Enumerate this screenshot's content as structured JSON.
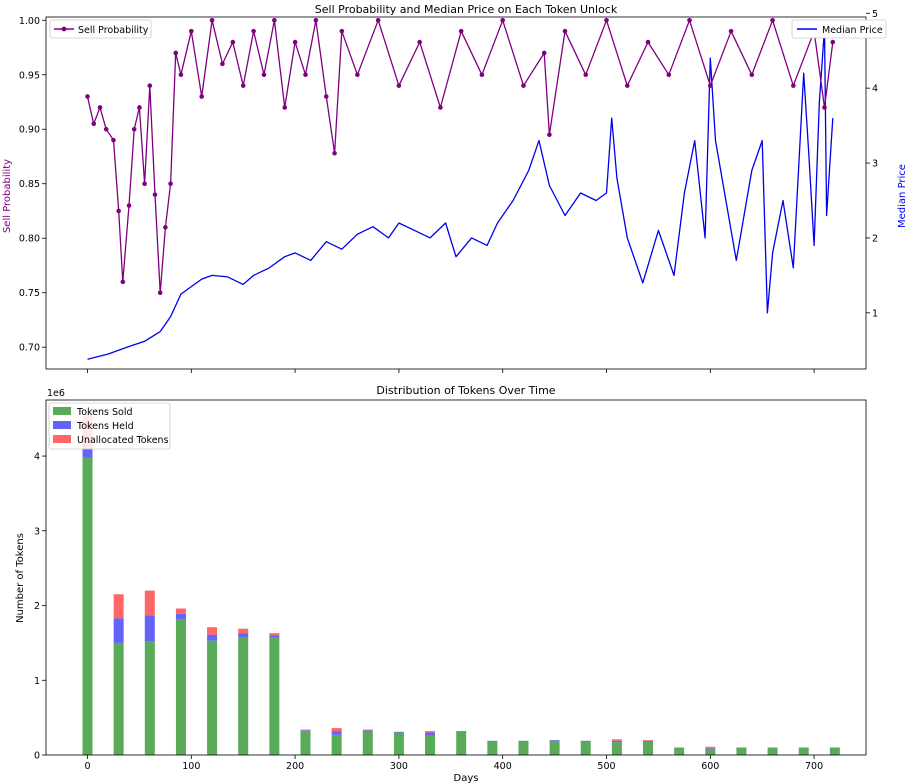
{
  "chart_data": [
    {
      "type": "line",
      "title": "Sell Probability and Median Price on Each Token Unlock",
      "xlabel": "",
      "ylabel_left": "Sell Probability",
      "ylabel_right": "Median Price",
      "xlim": [
        -40,
        750
      ],
      "ylim_left": [
        0.68,
        1.003
      ],
      "ylim_right": [
        0.25,
        4.95
      ],
      "left_ticks": [
        "0.70",
        "0.75",
        "0.80",
        "0.85",
        "0.90",
        "0.95",
        "1.00"
      ],
      "right_ticks": [
        "1",
        "2",
        "3",
        "4",
        "5"
      ],
      "legend_left": "top-left",
      "legend_right": "top-right",
      "colors": {
        "sell": "#800080",
        "price": "#0000ee"
      },
      "series": [
        {
          "name": "Sell Probability",
          "axis": "left",
          "points": [
            [
              0,
              0.93
            ],
            [
              6,
              0.905
            ],
            [
              12,
              0.92
            ],
            [
              18,
              0.9
            ],
            [
              25,
              0.89
            ],
            [
              30,
              0.825
            ],
            [
              34,
              0.76
            ],
            [
              40,
              0.83
            ],
            [
              45,
              0.9
            ],
            [
              50,
              0.92
            ],
            [
              55,
              0.85
            ],
            [
              60,
              0.94
            ],
            [
              65,
              0.84
            ],
            [
              70,
              0.75
            ],
            [
              75,
              0.81
            ],
            [
              80,
              0.85
            ],
            [
              85,
              0.97
            ],
            [
              90,
              0.95
            ],
            [
              100,
              0.99
            ],
            [
              110,
              0.93
            ],
            [
              120,
              1.0
            ],
            [
              130,
              0.96
            ],
            [
              140,
              0.98
            ],
            [
              150,
              0.94
            ],
            [
              160,
              0.99
            ],
            [
              170,
              0.95
            ],
            [
              180,
              1.0
            ],
            [
              190,
              0.92
            ],
            [
              200,
              0.98
            ],
            [
              210,
              0.95
            ],
            [
              220,
              1.0
            ],
            [
              230,
              0.93
            ],
            [
              238,
              0.878
            ],
            [
              245,
              0.99
            ],
            [
              260,
              0.95
            ],
            [
              280,
              1.0
            ],
            [
              300,
              0.94
            ],
            [
              320,
              0.98
            ],
            [
              340,
              0.92
            ],
            [
              360,
              0.99
            ],
            [
              380,
              0.95
            ],
            [
              400,
              1.0
            ],
            [
              420,
              0.94
            ],
            [
              440,
              0.97
            ],
            [
              445,
              0.895
            ],
            [
              460,
              0.99
            ],
            [
              480,
              0.95
            ],
            [
              500,
              1.0
            ],
            [
              520,
              0.94
            ],
            [
              540,
              0.98
            ],
            [
              560,
              0.95
            ],
            [
              580,
              1.0
            ],
            [
              600,
              0.94
            ],
            [
              620,
              0.99
            ],
            [
              640,
              0.95
            ],
            [
              660,
              1.0
            ],
            [
              680,
              0.94
            ],
            [
              700,
              0.99
            ],
            [
              710,
              0.92
            ],
            [
              718,
              0.98
            ]
          ]
        },
        {
          "name": "Median Price",
          "axis": "right",
          "points": [
            [
              0,
              0.38
            ],
            [
              20,
              0.45
            ],
            [
              40,
              0.55
            ],
            [
              55,
              0.62
            ],
            [
              70,
              0.75
            ],
            [
              80,
              0.95
            ],
            [
              90,
              1.25
            ],
            [
              100,
              1.35
            ],
            [
              110,
              1.45
            ],
            [
              120,
              1.5
            ],
            [
              135,
              1.48
            ],
            [
              150,
              1.38
            ],
            [
              160,
              1.5
            ],
            [
              175,
              1.6
            ],
            [
              190,
              1.75
            ],
            [
              200,
              1.8
            ],
            [
              215,
              1.7
            ],
            [
              230,
              1.95
            ],
            [
              245,
              1.85
            ],
            [
              260,
              2.05
            ],
            [
              275,
              2.15
            ],
            [
              290,
              2.0
            ],
            [
              300,
              2.2
            ],
            [
              315,
              2.1
            ],
            [
              330,
              2.0
            ],
            [
              345,
              2.2
            ],
            [
              355,
              1.75
            ],
            [
              370,
              2.0
            ],
            [
              385,
              1.9
            ],
            [
              395,
              2.2
            ],
            [
              410,
              2.5
            ],
            [
              425,
              2.9
            ],
            [
              435,
              3.3
            ],
            [
              445,
              2.7
            ],
            [
              460,
              2.3
            ],
            [
              475,
              2.6
            ],
            [
              490,
              2.5
            ],
            [
              500,
              2.6
            ],
            [
              505,
              3.6
            ],
            [
              510,
              2.8
            ],
            [
              520,
              2.0
            ],
            [
              535,
              1.4
            ],
            [
              550,
              2.1
            ],
            [
              565,
              1.5
            ],
            [
              575,
              2.6
            ],
            [
              585,
              3.3
            ],
            [
              595,
              2.0
            ],
            [
              600,
              4.4
            ],
            [
              605,
              3.3
            ],
            [
              615,
              2.5
            ],
            [
              625,
              1.7
            ],
            [
              640,
              2.9
            ],
            [
              650,
              3.3
            ],
            [
              655,
              1.0
            ],
            [
              660,
              1.8
            ],
            [
              670,
              2.5
            ],
            [
              680,
              1.6
            ],
            [
              685,
              2.9
            ],
            [
              690,
              4.2
            ],
            [
              695,
              3.1
            ],
            [
              700,
              1.9
            ],
            [
              705,
              3.8
            ],
            [
              710,
              4.8
            ],
            [
              712,
              2.3
            ],
            [
              718,
              3.6
            ]
          ]
        }
      ]
    },
    {
      "type": "bar",
      "title": "Distribution of Tokens Over Time",
      "xlabel": "Days",
      "ylabel": "Number of Tokens",
      "offset_label": "1e6",
      "xlim": [
        -40,
        750
      ],
      "ylim": [
        0,
        4.75
      ],
      "x_ticks": [
        "0",
        "100",
        "200",
        "300",
        "400",
        "500",
        "600",
        "700"
      ],
      "y_ticks": [
        "0",
        "1",
        "2",
        "3",
        "4"
      ],
      "legend": "top-left",
      "stacked": true,
      "x": [
        0,
        30,
        60,
        90,
        120,
        150,
        180,
        210,
        240,
        270,
        300,
        330,
        360,
        390,
        420,
        450,
        480,
        510,
        540,
        570,
        600,
        630,
        660,
        690,
        720
      ],
      "series": [
        {
          "name": "Tokens Sold",
          "color": "#59aa59",
          "values": [
            3.98,
            1.5,
            1.52,
            1.82,
            1.53,
            1.57,
            1.57,
            0.32,
            0.27,
            0.31,
            0.3,
            0.26,
            0.31,
            0.18,
            0.18,
            0.19,
            0.18,
            0.17,
            0.18,
            0.1,
            0.08,
            0.1,
            0.1,
            0.1,
            0.1
          ]
        },
        {
          "name": "Tokens Held",
          "color": "#6464f8",
          "values": [
            0.13,
            0.33,
            0.35,
            0.07,
            0.08,
            0.06,
            0.03,
            0.01,
            0.05,
            0.02,
            0.01,
            0.04,
            0.01,
            0.01,
            0.01,
            0.01,
            0.01,
            0.02,
            0.01,
            0.0,
            0.01,
            0.0,
            0.0,
            0.0,
            0.0
          ]
        },
        {
          "name": "Unallocated Tokens",
          "color": "#ff6666",
          "values": [
            0.44,
            0.32,
            0.33,
            0.07,
            0.1,
            0.06,
            0.03,
            0.01,
            0.04,
            0.01,
            0.0,
            0.02,
            0.0,
            0.0,
            0.0,
            0.0,
            0.0,
            0.02,
            0.01,
            0.0,
            0.02,
            0.0,
            0.0,
            0.0,
            0.0
          ]
        }
      ]
    }
  ]
}
